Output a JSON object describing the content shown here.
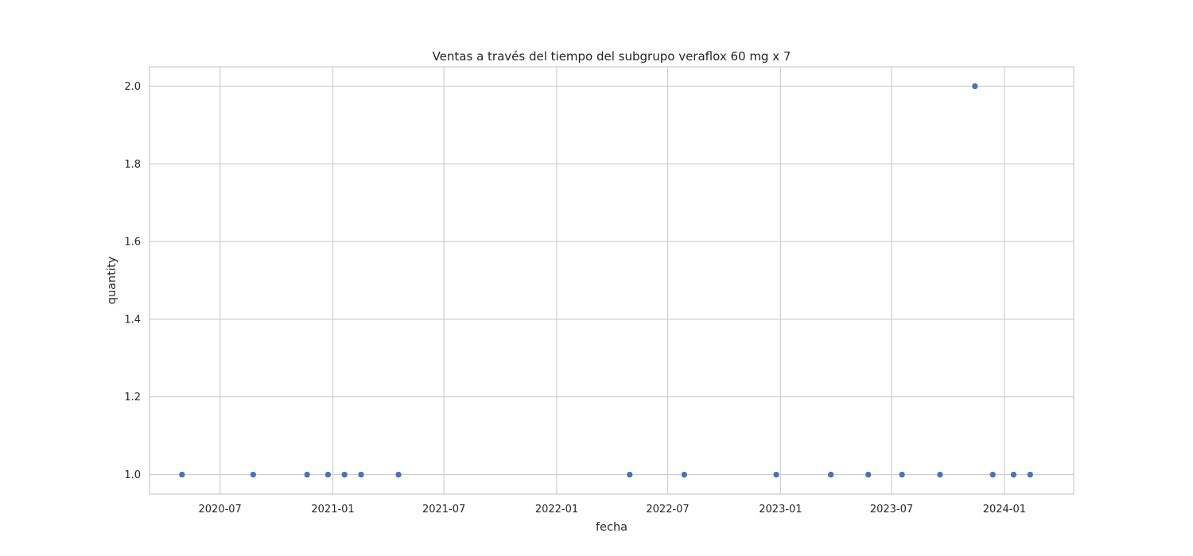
{
  "chart_data": {
    "type": "scatter",
    "title": "Ventas a través del tiempo del subgrupo veraflox   60 mg  x  7",
    "xlabel": "fecha",
    "ylabel": "quantity",
    "x_axis_type": "date",
    "xlim": [
      "2020-03-08",
      "2024-04-23"
    ],
    "ylim": [
      0.95,
      2.05
    ],
    "x_ticks": [
      "2020-07",
      "2021-01",
      "2021-07",
      "2022-01",
      "2022-07",
      "2023-01",
      "2023-07",
      "2024-01"
    ],
    "y_ticks": [
      1.0,
      1.2,
      1.4,
      1.6,
      1.8,
      2.0
    ],
    "y_tick_labels": [
      "1.0",
      "1.2",
      "1.4",
      "1.6",
      "1.8",
      "2.0"
    ],
    "grid": true,
    "marker_color": "#4c72b0",
    "series": [
      {
        "x": [
          "2020-04-30",
          "2020-08-24",
          "2020-11-20",
          "2020-12-24",
          "2021-01-20",
          "2021-02-16",
          "2021-04-18",
          "2022-04-30",
          "2022-07-28",
          "2022-12-25",
          "2023-03-24",
          "2023-05-24",
          "2023-07-18",
          "2023-09-18",
          "2023-11-14",
          "2023-12-13",
          "2024-01-16",
          "2024-02-12"
        ],
        "y": [
          1,
          1,
          1,
          1,
          1,
          1,
          1,
          1,
          1,
          1,
          1,
          1,
          1,
          1,
          2,
          1,
          1,
          1
        ]
      }
    ]
  }
}
